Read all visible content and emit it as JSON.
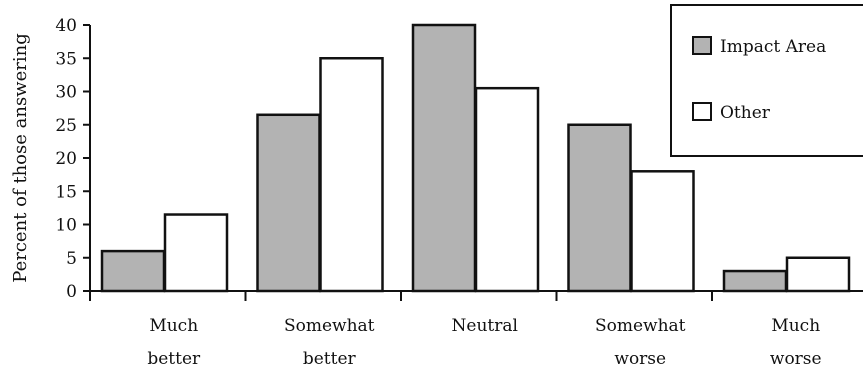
{
  "chart_data": {
    "type": "bar",
    "title": "",
    "xlabel": "",
    "ylabel": "Percent of those answering",
    "ylim": [
      0,
      40
    ],
    "yticks": [
      0,
      5,
      10,
      15,
      20,
      25,
      30,
      35,
      40
    ],
    "grid": false,
    "legend_position": "top-right",
    "categories": [
      [
        "Much",
        "better"
      ],
      [
        "Somewhat",
        "better"
      ],
      [
        "Neutral"
      ],
      [
        "Somewhat",
        "worse"
      ],
      [
        "Much",
        "worse"
      ]
    ],
    "series": [
      {
        "name": "Impact Area",
        "values": [
          6,
          26.5,
          40,
          25,
          3
        ],
        "color": "#b3b3b3"
      },
      {
        "name": "Other",
        "values": [
          11.5,
          35,
          30.5,
          18,
          5
        ],
        "color": "#ffffff"
      }
    ]
  }
}
